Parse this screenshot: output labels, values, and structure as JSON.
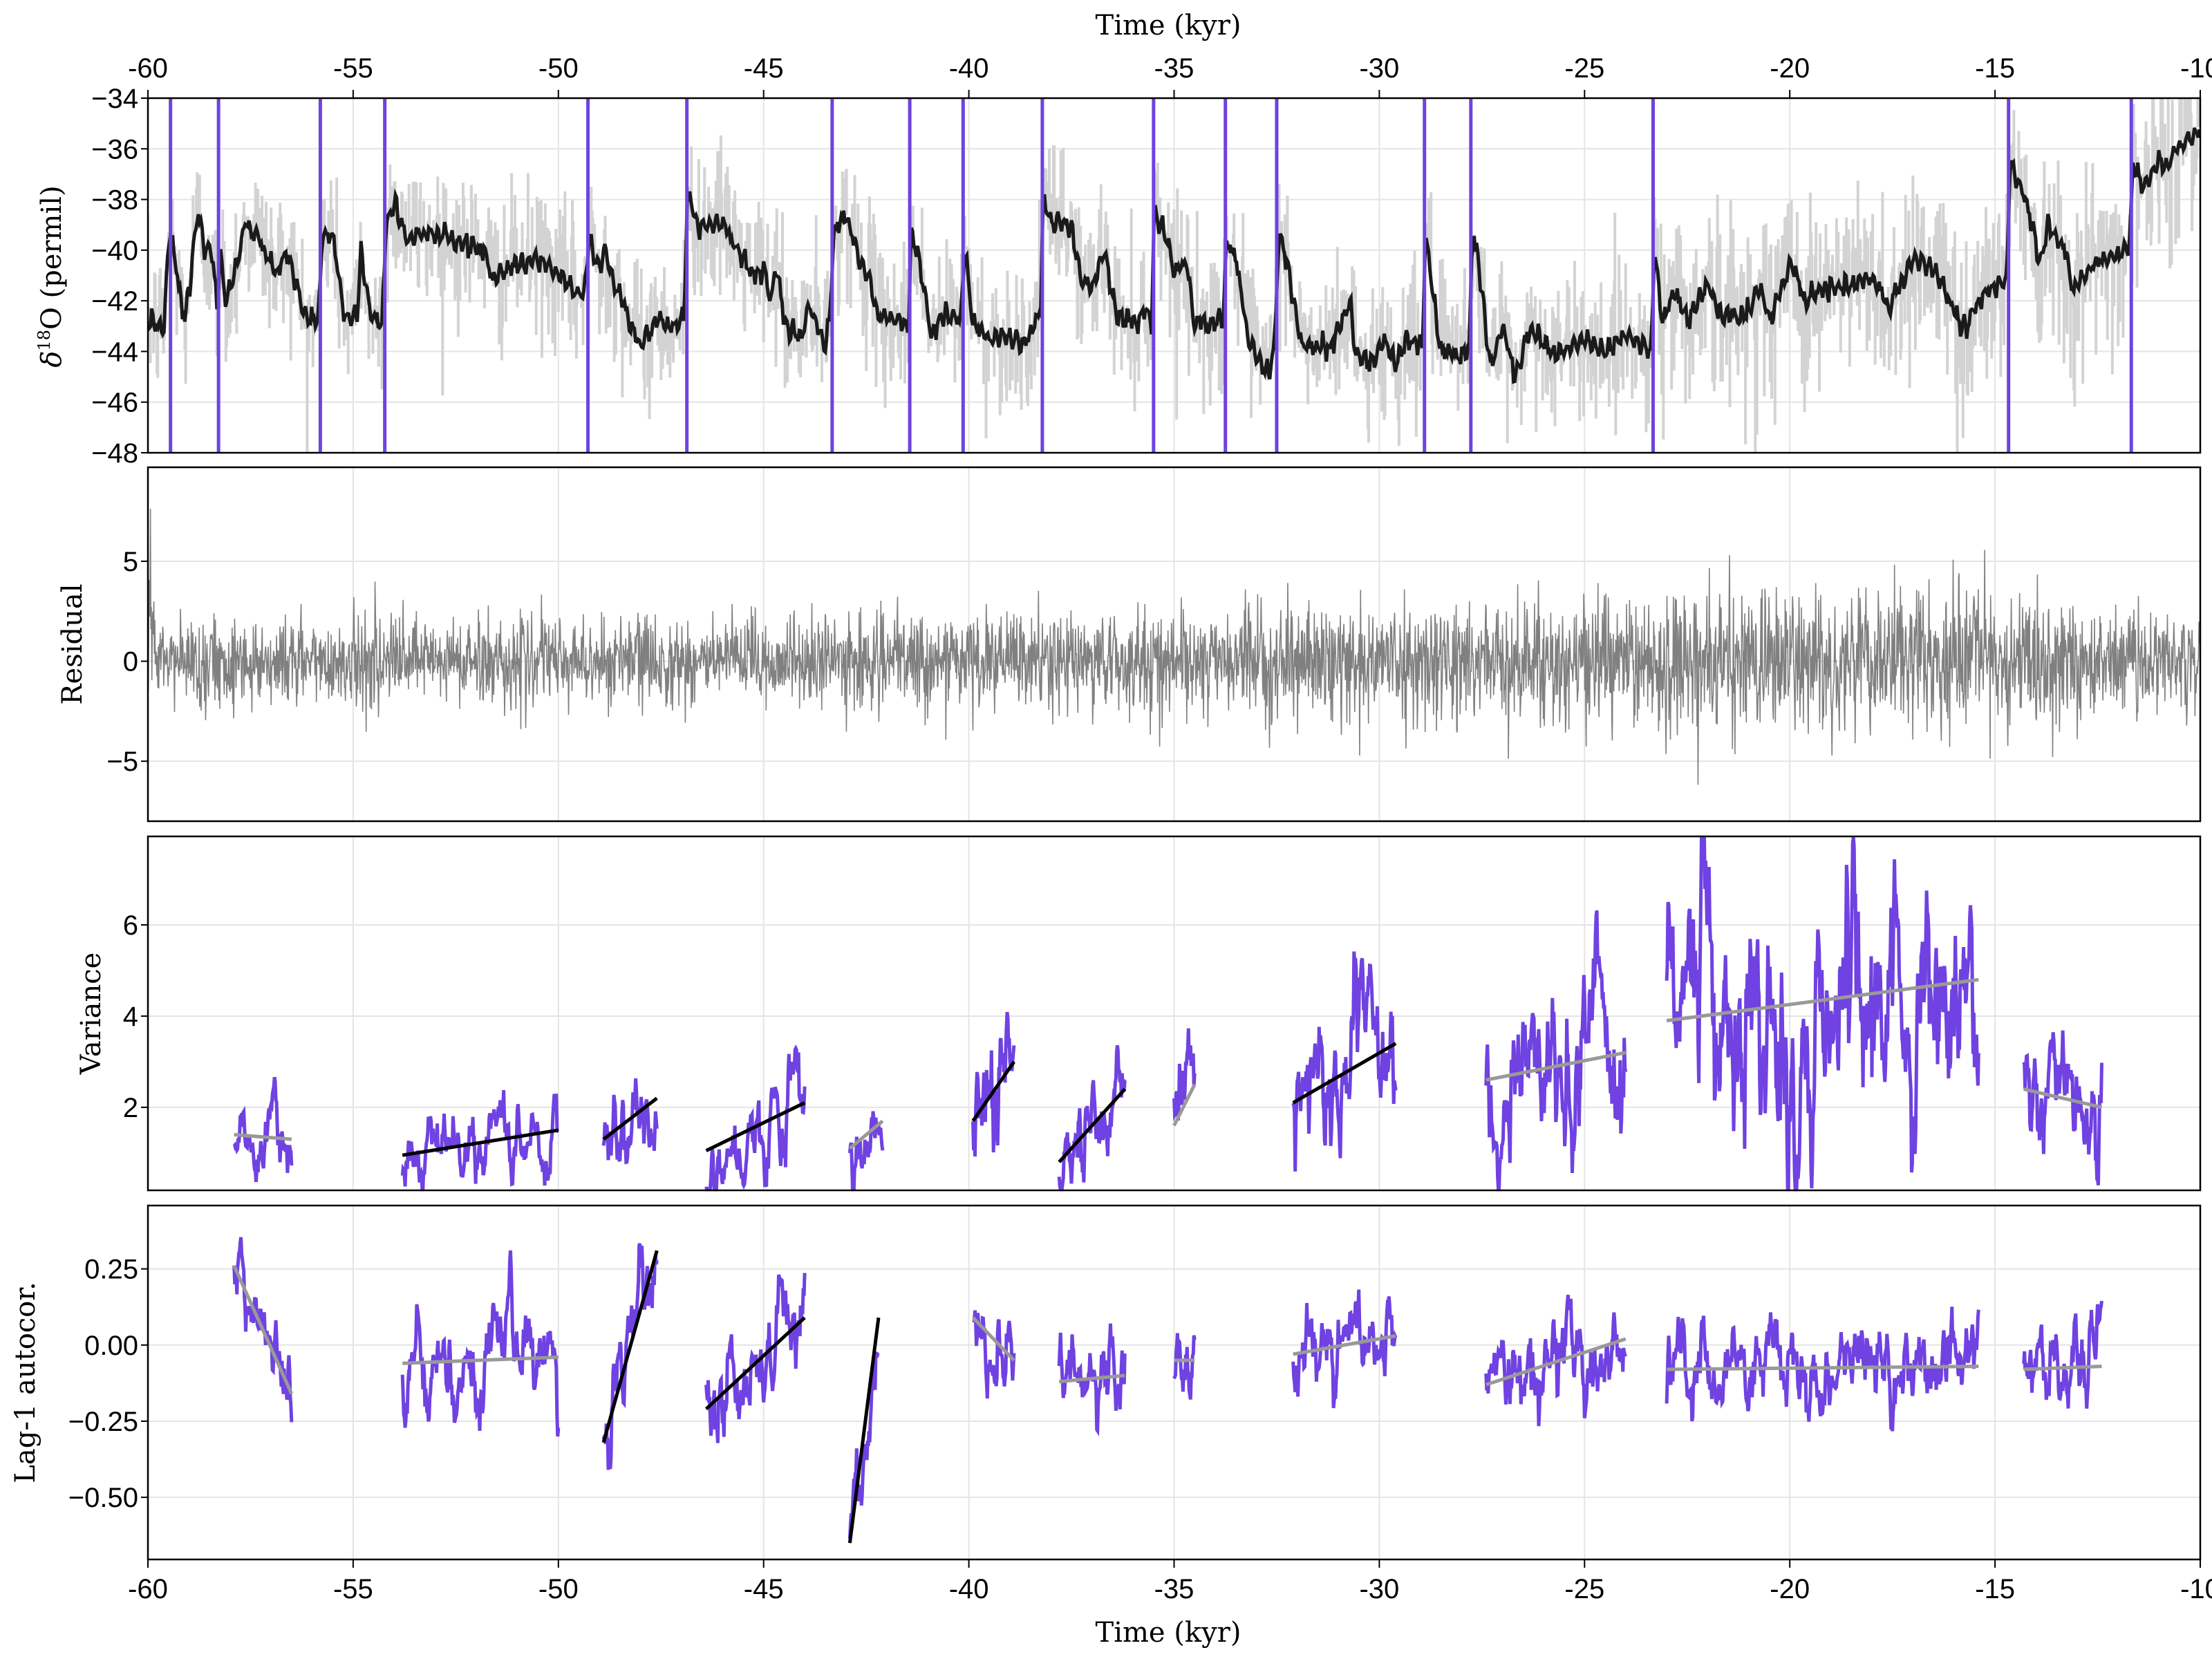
{
  "chart_data": [
    {
      "panel": "top",
      "type": "line",
      "xlabel": "Time (kyr)",
      "ylabel": "δ18O (permil)",
      "xlim": [
        -60,
        -10
      ],
      "ylim": [
        -48,
        -34
      ],
      "x_ticks": [
        -60,
        -55,
        -50,
        -45,
        -40,
        -35,
        -30,
        -25,
        -20,
        -15,
        -10
      ],
      "y_ticks": [
        -34,
        -36,
        -38,
        -40,
        -42,
        -44,
        -46,
        -48
      ],
      "grid": true,
      "x_axis_position": "top",
      "colors": {
        "smoothed": "#1a1a1a",
        "raw": "#d3d3d3",
        "transitions": "#6f42e1"
      },
      "transition_times": [
        -59.45,
        -58.28,
        -55.8,
        -54.23,
        -49.28,
        -46.87,
        -43.33,
        -41.44,
        -40.14,
        -38.21,
        -35.5,
        -33.75,
        -32.5,
        -28.9,
        -27.77,
        -23.33,
        -14.67,
        -11.68
      ],
      "smoothed_series": {
        "x": [
          -60,
          -59.6,
          -59.5,
          -59.4,
          -59.1,
          -58.8,
          -58.6,
          -58.45,
          -58.3,
          -58.25,
          -58.1,
          -57.6,
          -57.3,
          -56.9,
          -56.6,
          -56.2,
          -55.85,
          -55.75,
          -55.5,
          -55.2,
          -54.9,
          -54.8,
          -54.6,
          -54.3,
          -54.2,
          -54.0,
          -53.7,
          -53.0,
          -52.5,
          -51.8,
          -51.6,
          -51.2,
          -50.6,
          -50.3,
          -49.4,
          -49.25,
          -49.0,
          -48.9,
          -48.6,
          -48.4,
          -48.0,
          -47.6,
          -47.3,
          -46.95,
          -46.85,
          -46.6,
          -46.0,
          -45.7,
          -45.3,
          -45.0,
          -44.8,
          -44.7,
          -44.5,
          -44.1,
          -43.9,
          -43.5,
          -43.38,
          -43.3,
          -43.0,
          -42.6,
          -42.4,
          -42.2,
          -41.6,
          -41.47,
          -41.4,
          -41.2,
          -40.9,
          -40.6,
          -40.2,
          -40.1,
          -39.9,
          -39.6,
          -39.0,
          -38.6,
          -38.25,
          -38.2,
          -38.0,
          -37.5,
          -37.3,
          -37.0,
          -36.7,
          -36.4,
          -35.9,
          -35.7,
          -35.55,
          -35.48,
          -35.2,
          -35.0,
          -34.7,
          -34.5,
          -34.1,
          -33.8,
          -33.72,
          -33.5,
          -33.2,
          -33.0,
          -32.7,
          -32.55,
          -32.45,
          -32.3,
          -31.9,
          -31.2,
          -30.7,
          -30.6,
          -30.2,
          -29.9,
          -29.6,
          -29.3,
          -28.95,
          -28.88,
          -28.8,
          -28.5,
          -28.0,
          -27.8,
          -27.74,
          -27.6,
          -27.3,
          -27.0,
          -26.7,
          -26.3,
          -25.7,
          -25.0,
          -24.5,
          -24.0,
          -23.38,
          -23.3,
          -23.1,
          -22.8,
          -22.5,
          -22.0,
          -21.7,
          -21.3,
          -21.0,
          -20.7,
          -20.5,
          -20.0,
          -19.6,
          -19.3,
          -18.6,
          -18.0,
          -17.6,
          -17.0,
          -16.6,
          -16.2,
          -15.8,
          -15.2,
          -14.72,
          -14.63,
          -14.2,
          -13.9,
          -13.7,
          -13.3,
          -13.1,
          -12.6,
          -12.0,
          -11.72,
          -11.64,
          -11.4,
          -11.0,
          -10.8,
          -10.5,
          -10.2,
          -10.0
        ],
        "y": [
          -42.7,
          -43.1,
          -39.3,
          -39.8,
          -42.8,
          -38.6,
          -40.0,
          -39.9,
          -42.5,
          -40.0,
          -42.0,
          -39.0,
          -39.5,
          -40.8,
          -40.0,
          -42.5,
          -43.0,
          -39.3,
          -39.5,
          -42.8,
          -42.5,
          -40.0,
          -42.5,
          -42.9,
          -39.0,
          -38.2,
          -39.5,
          -39.3,
          -39.7,
          -40.0,
          -41.2,
          -40.6,
          -40.4,
          -40.6,
          -41.9,
          -39.6,
          -40.8,
          -39.9,
          -41.4,
          -42.2,
          -43.8,
          -42.7,
          -43.0,
          -42.8,
          -37.8,
          -39.0,
          -39.0,
          -39.8,
          -41.0,
          -40.8,
          -42.0,
          -40.3,
          -42.8,
          -43.5,
          -42.0,
          -43.8,
          -42.5,
          -39.5,
          -38.5,
          -40.8,
          -41.2,
          -42.7,
          -42.8,
          -43.0,
          -39.3,
          -40.5,
          -43.5,
          -42.5,
          -42.8,
          -39.9,
          -42.8,
          -43.3,
          -43.5,
          -43.6,
          -42.4,
          -38.0,
          -39.0,
          -39.0,
          -41.0,
          -41.5,
          -40.0,
          -42.5,
          -43.0,
          -42.2,
          -43.0,
          -38.5,
          -39.3,
          -41.0,
          -40.5,
          -42.8,
          -43.0,
          -42.5,
          -39.7,
          -40.3,
          -43.5,
          -44.0,
          -45.0,
          -43.7,
          -39.4,
          -40.0,
          -43.8,
          -43.8,
          -42.0,
          -44.0,
          -44.5,
          -43.5,
          -44.5,
          -43.5,
          -43.8,
          -39.4,
          -40.4,
          -44.0,
          -44.2,
          -43.8,
          -39.5,
          -40.3,
          -44.5,
          -43.0,
          -45.0,
          -43.0,
          -44.2,
          -43.5,
          -44.0,
          -43.3,
          -44.0,
          -40.0,
          -43.0,
          -41.6,
          -42.8,
          -41.2,
          -42.5,
          -42.7,
          -42.3,
          -41.5,
          -42.8,
          -40.6,
          -42.0,
          -41.6,
          -41.4,
          -41.0,
          -42.3,
          -40.3,
          -40.6,
          -41.6,
          -43.2,
          -41.6,
          -41.0,
          -36.5,
          -38.3,
          -40.5,
          -39.0,
          -40.0,
          -41.5,
          -40.5,
          -40.2,
          -39.8,
          -36.5,
          -37.6,
          -36.5,
          -36.8,
          -35.8,
          -35.5,
          -35.0
        ]
      }
    },
    {
      "panel": "residual",
      "type": "line",
      "ylabel": "Residual",
      "xlim": [
        -60,
        -10
      ],
      "ylim": [
        -8.0,
        9.7
      ],
      "y_ticks": [
        -5,
        0,
        5
      ],
      "grid": true,
      "color": "#808080",
      "spread_profile": {
        "x": [
          -60,
          -50,
          -40,
          -30,
          -25,
          -20,
          -15,
          -10
        ],
        "std": [
          1.1,
          1.1,
          1.15,
          1.35,
          1.6,
          1.8,
          1.7,
          1.2
        ]
      }
    },
    {
      "panel": "variance",
      "type": "line",
      "ylabel": "Variance",
      "xlim": [
        -60,
        -10
      ],
      "ylim": [
        0.18,
        7.94
      ],
      "y_ticks": [
        2,
        4,
        6
      ],
      "grid": true,
      "colors": {
        "series": "#6f42e1",
        "significant_trend": "#000000",
        "insignificant_trend": "#999999"
      },
      "segments": [
        {
          "x": [
            -57.9,
            -56.5
          ],
          "trend": [
            1.4,
            1.3
          ],
          "significant": false
        },
        {
          "x": [
            -53.8,
            -50.0
          ],
          "trend": [
            0.95,
            1.5
          ],
          "significant": true
        },
        {
          "x": [
            -48.9,
            -47.6
          ],
          "trend": [
            1.3,
            2.2
          ],
          "significant": true
        },
        {
          "x": [
            -46.4,
            -44.0
          ],
          "trend": [
            1.05,
            2.1
          ],
          "significant": true
        },
        {
          "x": [
            -42.9,
            -42.1
          ],
          "trend": [
            1.1,
            1.7
          ],
          "significant": false
        },
        {
          "x": [
            -39.9,
            -38.9
          ],
          "trend": [
            1.7,
            3.0
          ],
          "significant": true
        },
        {
          "x": [
            -37.8,
            -36.2
          ],
          "trend": [
            0.8,
            2.4
          ],
          "significant": true
        },
        {
          "x": [
            -35.0,
            -34.5
          ],
          "trend": [
            1.6,
            2.5
          ],
          "significant": false
        },
        {
          "x": [
            -32.1,
            -29.6
          ],
          "trend": [
            2.1,
            3.4
          ],
          "significant": true
        },
        {
          "x": [
            -27.4,
            -24.0
          ],
          "trend": [
            2.6,
            3.2
          ],
          "significant": false
        },
        {
          "x": [
            -23.0,
            -15.4
          ],
          "trend": [
            3.9,
            4.8
          ],
          "significant": false
        },
        {
          "x": [
            -14.3,
            -12.4
          ],
          "trend": [
            2.4,
            2.0
          ],
          "significant": false
        }
      ]
    },
    {
      "panel": "autocorrelation",
      "type": "line",
      "xlabel": "Time (kyr)",
      "ylabel": "Lag-1 autocor.",
      "xlim": [
        -60,
        -10
      ],
      "ylim": [
        -0.704,
        0.458
      ],
      "x_ticks": [
        -60,
        -55,
        -50,
        -45,
        -40,
        -35,
        -30,
        -25,
        -20,
        -15,
        -10
      ],
      "y_ticks": [
        "0.25",
        "0.00",
        "−0.25",
        "−0.50"
      ],
      "y_tick_values": [
        0.25,
        0.0,
        -0.25,
        -0.5
      ],
      "grid": true,
      "colors": {
        "series": "#6f42e1",
        "significant_trend": "#000000",
        "insignificant_trend": "#999999"
      },
      "segments": [
        {
          "x": [
            -57.9,
            -56.5
          ],
          "trend": [
            0.26,
            -0.16
          ],
          "significant": false
        },
        {
          "x": [
            -53.8,
            -50.0
          ],
          "trend": [
            -0.06,
            -0.04
          ],
          "significant": false
        },
        {
          "x": [
            -48.9,
            -47.6
          ],
          "trend": [
            -0.32,
            0.31
          ],
          "significant": true
        },
        {
          "x": [
            -46.4,
            -44.0
          ],
          "trend": [
            -0.21,
            0.09
          ],
          "significant": true
        },
        {
          "x": [
            -42.9,
            -42.2
          ],
          "trend": [
            -0.65,
            0.09
          ],
          "significant": true
        },
        {
          "x": [
            -39.9,
            -38.9
          ],
          "trend": [
            0.09,
            -0.05
          ],
          "significant": false
        },
        {
          "x": [
            -37.8,
            -36.2
          ],
          "trend": [
            -0.12,
            -0.1
          ],
          "significant": false
        },
        {
          "x": [
            -35.0,
            -34.5
          ],
          "trend": [
            -0.05,
            -0.05
          ],
          "significant": false
        },
        {
          "x": [
            -32.1,
            -29.6
          ],
          "trend": [
            -0.03,
            0.03
          ],
          "significant": false
        },
        {
          "x": [
            -27.4,
            -24.0
          ],
          "trend": [
            -0.13,
            0.02
          ],
          "significant": false
        },
        {
          "x": [
            -23.0,
            -15.4
          ],
          "trend": [
            -0.08,
            -0.07
          ],
          "significant": false
        },
        {
          "x": [
            -14.3,
            -12.4
          ],
          "trend": [
            -0.08,
            -0.07
          ],
          "significant": false
        }
      ]
    }
  ],
  "labels": {
    "top_xlabel": "Time (kyr)",
    "bottom_xlabel": "Time (kyr)",
    "ylabel_top_prefix": "δ",
    "ylabel_top_sup": "18",
    "ylabel_top_rest": "O (permil)",
    "ylabel_residual": "Residual",
    "ylabel_variance": "Variance",
    "ylabel_autocor": "Lag-1 autocor."
  }
}
